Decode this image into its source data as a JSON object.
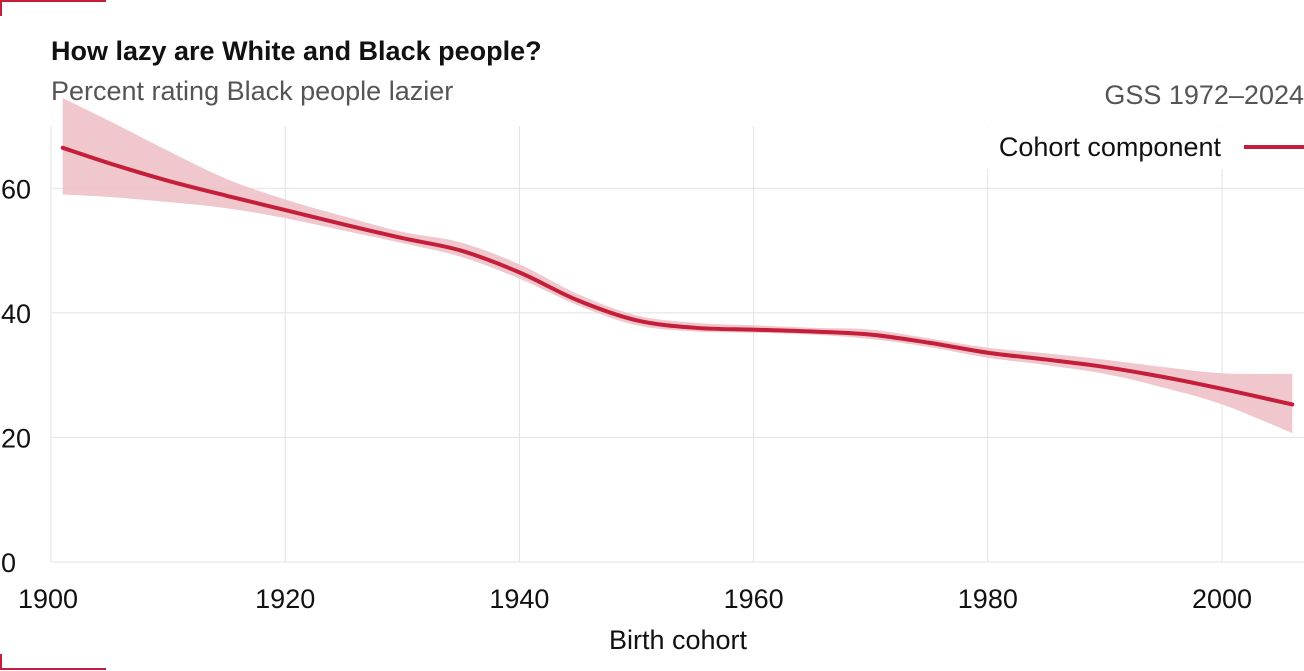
{
  "header": {
    "title": "How lazy are White and Black people?",
    "subtitle": "Percent rating Black people lazier",
    "source": "GSS 1972–2024"
  },
  "colors": {
    "accent": "#c41e3a",
    "band": "#eec1c8",
    "grid": "#e2e2e2"
  },
  "chart_data": {
    "type": "line",
    "title": "How lazy are White and Black people?",
    "subtitle": "Percent rating Black people lazier",
    "xlabel": "Birth cohort",
    "ylabel": "",
    "xlim": [
      1900,
      2007
    ],
    "ylim": [
      0,
      70
    ],
    "x_ticks": [
      1900,
      1920,
      1940,
      1960,
      1980,
      2000
    ],
    "y_ticks": [
      0,
      20,
      40,
      60
    ],
    "grid": true,
    "legend_position": "top-right",
    "series": [
      {
        "name": "Cohort component",
        "x": [
          1901,
          1905,
          1910,
          1915,
          1920,
          1925,
          1930,
          1935,
          1940,
          1945,
          1950,
          1955,
          1960,
          1965,
          1970,
          1975,
          1980,
          1985,
          1990,
          1995,
          2000,
          2006
        ],
        "values": [
          66.5,
          64.0,
          61.2,
          58.8,
          56.5,
          54.2,
          52.0,
          50.0,
          46.5,
          42.0,
          38.8,
          37.6,
          37.3,
          37.0,
          36.5,
          35.2,
          33.6,
          32.5,
          31.3,
          29.7,
          27.8,
          25.3
        ],
        "lower": [
          59.0,
          58.6,
          57.8,
          56.8,
          55.2,
          53.2,
          51.2,
          49.0,
          45.5,
          41.2,
          38.0,
          37.0,
          36.8,
          36.5,
          35.8,
          34.5,
          32.8,
          31.6,
          30.2,
          28.0,
          25.3,
          20.7
        ],
        "upper": [
          74.5,
          70.8,
          66.0,
          61.5,
          58.2,
          55.5,
          53.0,
          51.3,
          47.8,
          43.0,
          39.6,
          38.4,
          38.0,
          37.6,
          37.3,
          35.9,
          34.4,
          33.5,
          32.5,
          31.3,
          30.3,
          30.2
        ]
      }
    ]
  }
}
